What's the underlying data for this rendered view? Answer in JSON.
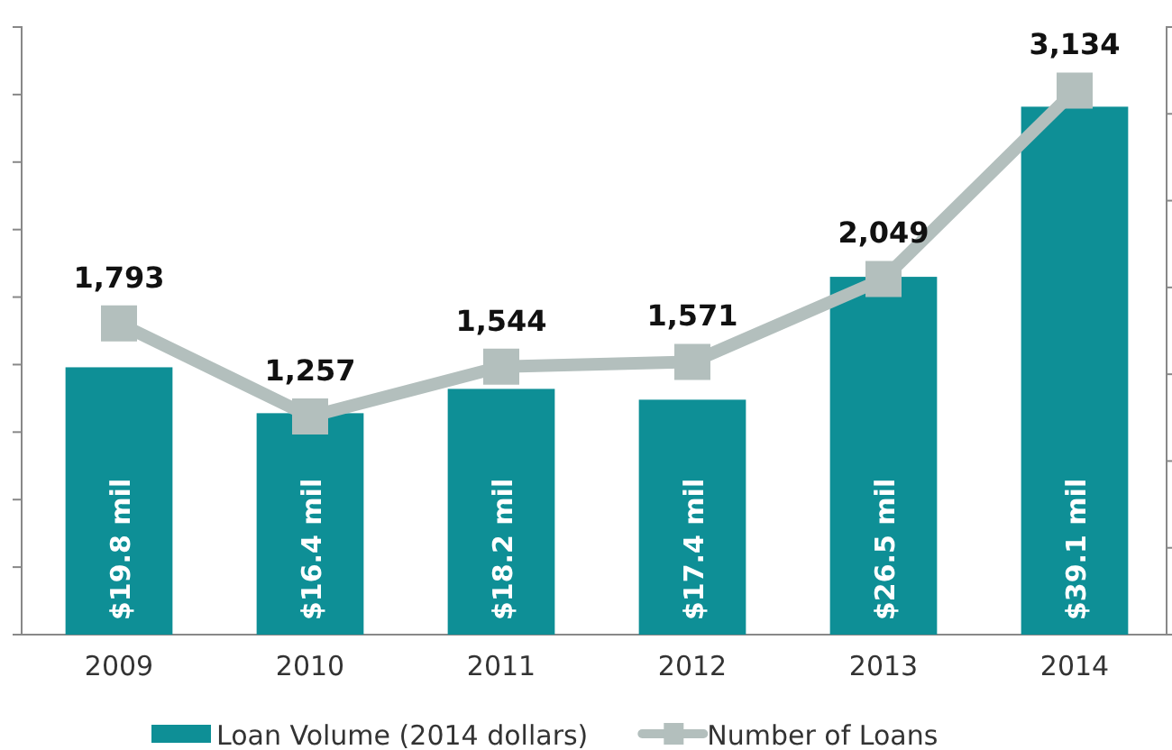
{
  "chart_data": {
    "type": "bar",
    "categories": [
      "2009",
      "2010",
      "2011",
      "2012",
      "2013",
      "2014"
    ],
    "series": [
      {
        "name": "Loan Volume (2014 dollars)",
        "color": "#0e8f96",
        "values": [
          19.8,
          16.4,
          18.2,
          17.4,
          26.5,
          39.1
        ],
        "value_labels": [
          "$19.8 mil",
          "$16.4 mil",
          "$18.2 mil",
          "$17.4 mil",
          "$26.5 mil",
          "$39.1 mil"
        ]
      },
      {
        "name": "Number of Loans",
        "type": "line",
        "axis": "y2",
        "color": "#b3bfbd",
        "values": [
          1793,
          1257,
          1544,
          1571,
          2049,
          3134
        ],
        "value_labels": [
          "1,793",
          "1,257",
          "1,544",
          "1,571",
          "2,049",
          "3,134"
        ]
      }
    ],
    "ylim": [
      0,
      45
    ],
    "yticks": [
      {
        "value": 0,
        "label": null
      },
      {
        "value": 5,
        "label": null
      },
      {
        "value": 10,
        "label": null
      },
      {
        "value": 15,
        "label": null
      },
      {
        "value": 20,
        "label": null
      },
      {
        "value": 25,
        "label": null
      },
      {
        "value": 30,
        "label": null
      },
      {
        "value": 35,
        "label": null
      },
      {
        "value": 40,
        "label": null
      },
      {
        "value": 45,
        "label": null
      }
    ],
    "y2lim": [
      0,
      3500
    ],
    "y2ticks": [
      {
        "value": 0,
        "label": null
      },
      {
        "value": 500,
        "label": null
      },
      {
        "value": 1000,
        "label": null
      },
      {
        "value": 1500,
        "label": null
      },
      {
        "value": 2000,
        "label": null
      },
      {
        "value": 2500,
        "label": null
      },
      {
        "value": 3000,
        "label": null
      },
      {
        "value": 3500,
        "label": null
      }
    ],
    "tick_labels": "x",
    "marker": "square",
    "line_style": "solid",
    "legend": "bottom",
    "grid": false
  }
}
